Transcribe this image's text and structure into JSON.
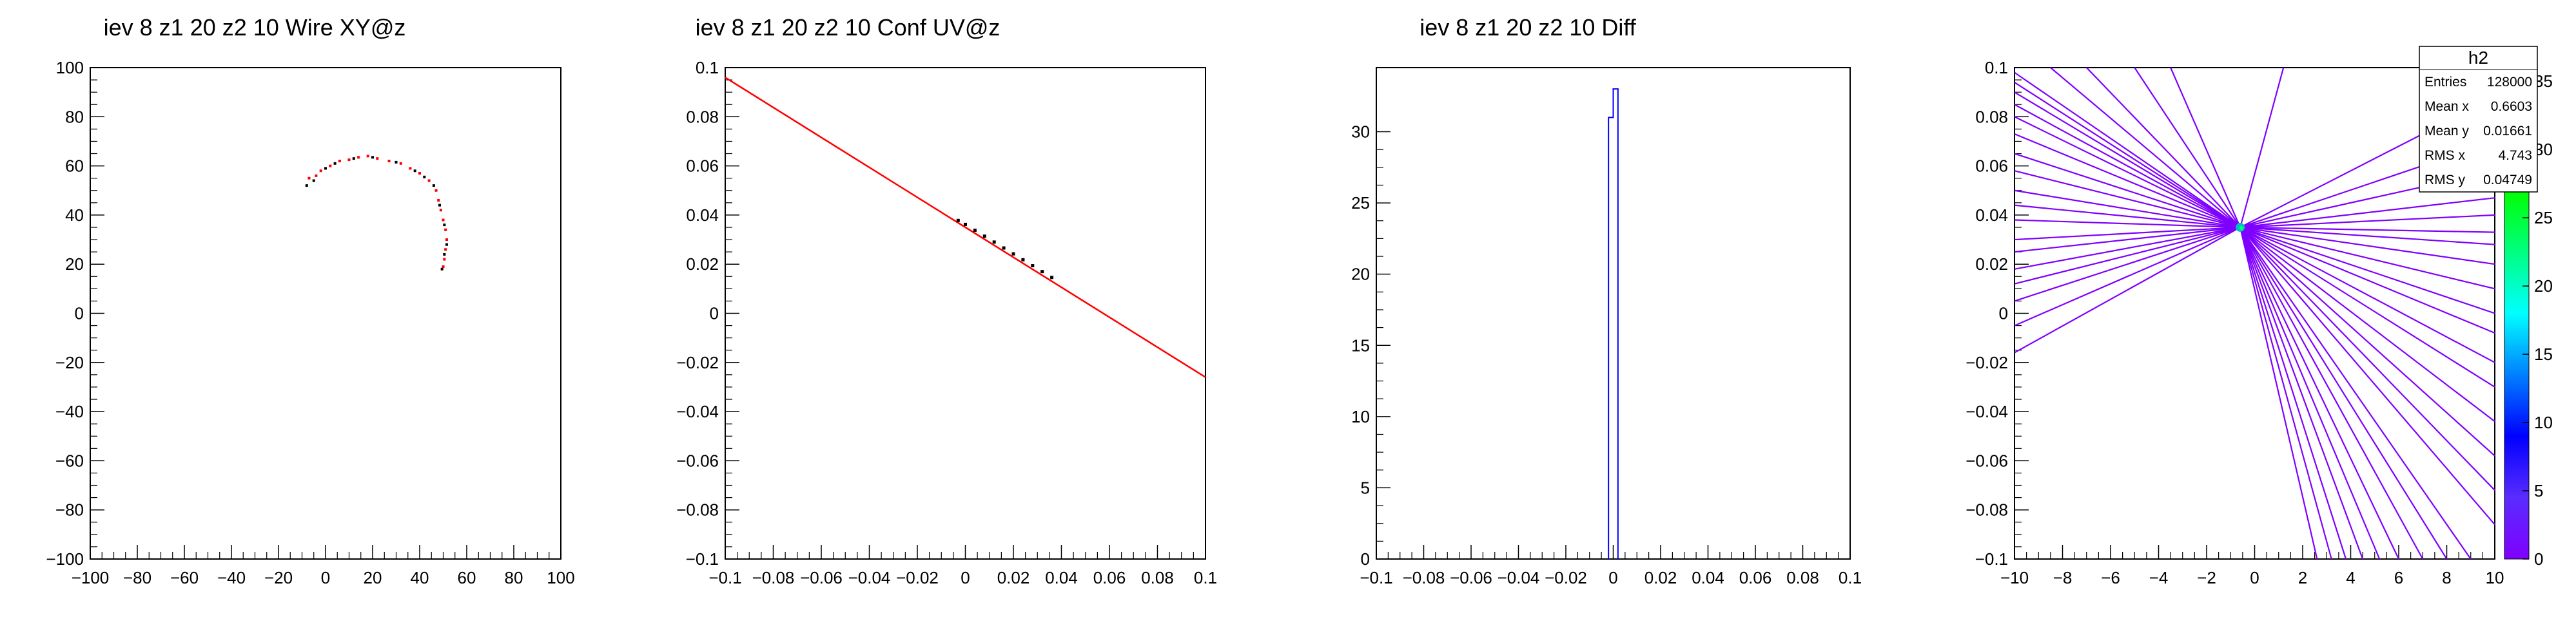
{
  "chart_data": [
    {
      "type": "scatter",
      "title": "iev 8 z1     20 z2     10 Wire XY@z",
      "xlim": [
        -100,
        100
      ],
      "ylim": [
        -100,
        100
      ],
      "xticks": [
        -100,
        -80,
        -60,
        -40,
        -20,
        0,
        20,
        40,
        60,
        80,
        100
      ],
      "yticks": [
        -100,
        -80,
        -60,
        -40,
        -20,
        0,
        20,
        40,
        60,
        80,
        100
      ],
      "tick_labels_x": [
        "−100",
        "−80",
        "−60",
        "−40",
        "−20",
        "0",
        "20",
        "40",
        "60",
        "80",
        "100"
      ],
      "tick_labels_y": [
        "−100",
        "−80",
        "−60",
        "−40",
        "−20",
        "0",
        "20",
        "40",
        "60",
        "80",
        "100"
      ],
      "series": [
        {
          "color": "#ff0000",
          "points": [
            [
              -7,
              55
            ],
            [
              -4,
              56
            ],
            [
              -2,
              58
            ],
            [
              2,
              60
            ],
            [
              6,
              62
            ],
            [
              10,
              62.5
            ],
            [
              14,
              63.5
            ],
            [
              18,
              64
            ],
            [
              22,
              63
            ],
            [
              27,
              62
            ],
            [
              32,
              61
            ],
            [
              36,
              59
            ],
            [
              40,
              57
            ],
            [
              44,
              54
            ],
            [
              47,
              50
            ],
            [
              48,
              46
            ],
            [
              49,
              42
            ],
            [
              50,
              38
            ],
            [
              51,
              34
            ],
            [
              51.5,
              30
            ],
            [
              51,
              26
            ],
            [
              50.5,
              22
            ],
            [
              50,
              19
            ]
          ]
        },
        {
          "color": "#000000",
          "points": [
            [
              -8,
              52
            ],
            [
              -5,
              54
            ],
            [
              0,
              59
            ],
            [
              4,
              61
            ],
            [
              12,
              63
            ],
            [
              20,
              63.5
            ],
            [
              30,
              61.5
            ],
            [
              38,
              58
            ],
            [
              42,
              55.5
            ],
            [
              46,
              52
            ],
            [
              48.5,
              44
            ],
            [
              50.5,
              36
            ],
            [
              51.5,
              28
            ],
            [
              50.5,
              24
            ],
            [
              49.5,
              18
            ]
          ]
        }
      ]
    },
    {
      "type": "line",
      "title": "iev 8 z1     20 z2     10 Conf UV@z",
      "xlim": [
        -0.1,
        0.1
      ],
      "ylim": [
        -0.1,
        0.1
      ],
      "xticks": [
        -0.1,
        -0.08,
        -0.06,
        -0.04,
        -0.02,
        0,
        0.02,
        0.04,
        0.06,
        0.08,
        0.1
      ],
      "yticks": [
        -0.1,
        -0.08,
        -0.06,
        -0.04,
        -0.02,
        0,
        0.02,
        0.04,
        0.06,
        0.08,
        0.1
      ],
      "tick_labels_x": [
        "−0.1",
        "−0.08",
        "−0.06",
        "−0.04",
        "−0.02",
        "0",
        "0.02",
        "0.04",
        "0.06",
        "0.08",
        "0.1"
      ],
      "tick_labels_y": [
        "−0.1",
        "−0.08",
        "−0.06",
        "−0.04",
        "−0.02",
        "0",
        "0.02",
        "0.04",
        "0.06",
        "0.08",
        "0.1"
      ],
      "line": {
        "color": "#ff0000",
        "x": [
          -0.1,
          0.1
        ],
        "y": [
          0.096,
          -0.026
        ]
      },
      "points": {
        "color": "#000000",
        "xy": [
          [
            -0.003,
            0.0378
          ],
          [
            0.0,
            0.0362
          ],
          [
            0.004,
            0.0338
          ],
          [
            0.008,
            0.0314
          ],
          [
            0.012,
            0.029
          ],
          [
            0.016,
            0.0266
          ],
          [
            0.02,
            0.0242
          ],
          [
            0.024,
            0.0218
          ],
          [
            0.028,
            0.0194
          ],
          [
            0.032,
            0.017
          ],
          [
            0.036,
            0.0146
          ]
        ]
      }
    },
    {
      "type": "bar",
      "title": "iev 8 z1     20 z2     10 Diff",
      "xlim": [
        -0.1,
        0.1
      ],
      "ylim": [
        0,
        34.5
      ],
      "xticks": [
        -0.1,
        -0.08,
        -0.06,
        -0.04,
        -0.02,
        0,
        0.02,
        0.04,
        0.06,
        0.08,
        0.1
      ],
      "yticks": [
        0,
        5,
        10,
        15,
        20,
        25,
        30
      ],
      "tick_labels_x": [
        "−0.1",
        "−0.08",
        "−0.06",
        "−0.04",
        "−0.02",
        "0",
        "0.02",
        "0.04",
        "0.06",
        "0.08",
        "0.1"
      ],
      "tick_labels_y": [
        "0",
        "5",
        "10",
        "15",
        "20",
        "25",
        "30"
      ],
      "color": "#0000ff",
      "bins": [
        {
          "x0": -0.002,
          "x1": 0.0,
          "value": 31
        },
        {
          "x0": 0.0,
          "x1": 0.002,
          "value": 33
        }
      ]
    },
    {
      "type": "heatmap",
      "xlim": [
        -10,
        10
      ],
      "ylim": [
        -0.1,
        0.1
      ],
      "xticks": [
        -10,
        -8,
        -6,
        -4,
        -2,
        0,
        2,
        4,
        6,
        8,
        10
      ],
      "yticks": [
        -0.1,
        -0.08,
        -0.06,
        -0.04,
        -0.02,
        0,
        0.02,
        0.04,
        0.06,
        0.08,
        0.1
      ],
      "tick_labels_x": [
        "−10",
        "−8",
        "−6",
        "−4",
        "−2",
        "0",
        "2",
        "4",
        "6",
        "8",
        "10"
      ],
      "tick_labels_y": [
        "−0.1",
        "−0.08",
        "−0.06",
        "−0.04",
        "−0.02",
        "0",
        "0.02",
        "0.04",
        "0.06",
        "0.08",
        "0.1"
      ],
      "center": [
        -0.6,
        0.035
      ],
      "line_color": "#7f00ff",
      "line_ends": [
        [
          -10,
          0.098
        ],
        [
          -10,
          0.094
        ],
        [
          -10,
          0.09
        ],
        [
          -10,
          0.085
        ],
        [
          -10,
          0.08
        ],
        [
          -10,
          0.073
        ],
        [
          -10,
          0.065
        ],
        [
          -10,
          0.058
        ],
        [
          -10,
          0.05
        ],
        [
          -10,
          0.044
        ],
        [
          -10,
          0.038
        ],
        [
          -10,
          0.03
        ],
        [
          -10,
          0.025
        ],
        [
          -10,
          0.018
        ],
        [
          -10,
          0.012
        ],
        [
          -10,
          0.005
        ],
        [
          -10,
          -0.005
        ],
        [
          -10,
          -0.016
        ],
        [
          -7,
          0.1
        ],
        [
          -5,
          0.1
        ],
        [
          -3.5,
          0.1
        ],
        [
          -8.5,
          0.1
        ],
        [
          10,
          0.088
        ],
        [
          10,
          0.07
        ],
        [
          10,
          0.058
        ],
        [
          10,
          0.047
        ],
        [
          10,
          0.04
        ],
        [
          10,
          0.033
        ],
        [
          10,
          0.028
        ],
        [
          10,
          0.02
        ],
        [
          10,
          0.01
        ],
        [
          10,
          0.0
        ],
        [
          10,
          -0.008
        ],
        [
          10,
          -0.02
        ],
        [
          10,
          -0.03
        ],
        [
          10,
          -0.044
        ],
        [
          10,
          -0.058
        ],
        [
          10,
          -0.072
        ],
        [
          10,
          -0.086
        ],
        [
          9,
          -0.1
        ],
        [
          8,
          -0.1
        ],
        [
          7,
          -0.1
        ],
        [
          6,
          -0.1
        ],
        [
          5.2,
          -0.1
        ],
        [
          4.5,
          -0.1
        ],
        [
          3.8,
          -0.1
        ],
        [
          3.2,
          -0.1
        ],
        [
          2.6,
          -0.1
        ],
        [
          1.2,
          0.1
        ]
      ],
      "colorbar": {
        "range": [
          0,
          36
        ],
        "ticks": [
          0,
          5,
          10,
          15,
          20,
          25,
          30,
          35
        ],
        "tick_labels": [
          "0",
          "5",
          "10",
          "15",
          "20",
          "25",
          "30",
          "35"
        ],
        "colors": [
          "#7f00ff",
          "#5a2cff",
          "#0000ff",
          "#0080ff",
          "#00ffff",
          "#00ff80",
          "#00ff00",
          "#80ff00",
          "#ffff00"
        ]
      },
      "stats": {
        "title": "h2",
        "rows": [
          {
            "label": "Entries",
            "value": "128000"
          },
          {
            "label": "Mean x",
            "value": "0.6603"
          },
          {
            "label": "Mean y",
            "value": "0.01661"
          },
          {
            "label": "RMS x",
            "value": "4.743"
          },
          {
            "label": "RMS y",
            "value": "0.04749"
          }
        ]
      }
    }
  ]
}
